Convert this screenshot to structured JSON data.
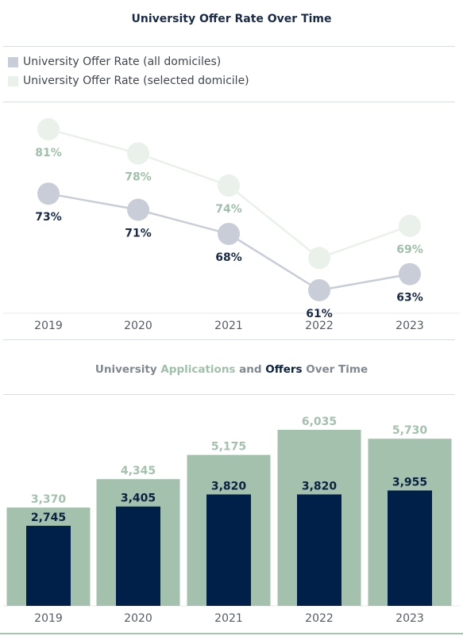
{
  "chart_data": [
    {
      "type": "line",
      "title": "University Offer Rate Over Time",
      "categories": [
        "2019",
        "2020",
        "2021",
        "2022",
        "2023"
      ],
      "ylim": [
        55,
        85
      ],
      "legend_position": "top-left",
      "series": [
        {
          "name": "University Offer Rate (all domiciles)",
          "values": [
            73,
            71,
            68,
            61,
            63
          ],
          "labels": [
            "73%",
            "71%",
            "68%",
            "61%",
            "63%"
          ],
          "color": "#c8cdd8",
          "label_color": "#1a2b4a"
        },
        {
          "name": "University Offer Rate (selected domicile)",
          "values": [
            81,
            78,
            74,
            65,
            69
          ],
          "labels": [
            "81%",
            "78%",
            "74%",
            "",
            "69%"
          ],
          "color": "#e9f1ea",
          "label_color": "#9fc0a9"
        }
      ]
    },
    {
      "type": "bar",
      "title_parts": [
        {
          "text": "University ",
          "color": "#808891"
        },
        {
          "text": "Applications",
          "color": "#9fc0a9"
        },
        {
          "text": " and ",
          "color": "#808891"
        },
        {
          "text": "Offers",
          "color": "#0b2142"
        },
        {
          "text": " Over Time",
          "color": "#808891"
        }
      ],
      "categories": [
        "2019",
        "2020",
        "2021",
        "2022",
        "2023"
      ],
      "ylim": [
        0,
        6500
      ],
      "series": [
        {
          "name": "Applications",
          "values": [
            3370,
            4345,
            5175,
            6035,
            5730
          ],
          "labels": [
            "3,370",
            "4,345",
            "5,175",
            "6,035",
            "5,730"
          ],
          "color": "#a3c1ad",
          "label_color": "#a3c1ad"
        },
        {
          "name": "Offers",
          "values": [
            2745,
            3405,
            3820,
            3820,
            3955
          ],
          "labels": [
            "2,745",
            "3,405",
            "3,820",
            "3,820",
            "3,955"
          ],
          "color": "#00204a",
          "label_color": "#0b2142"
        }
      ]
    }
  ]
}
